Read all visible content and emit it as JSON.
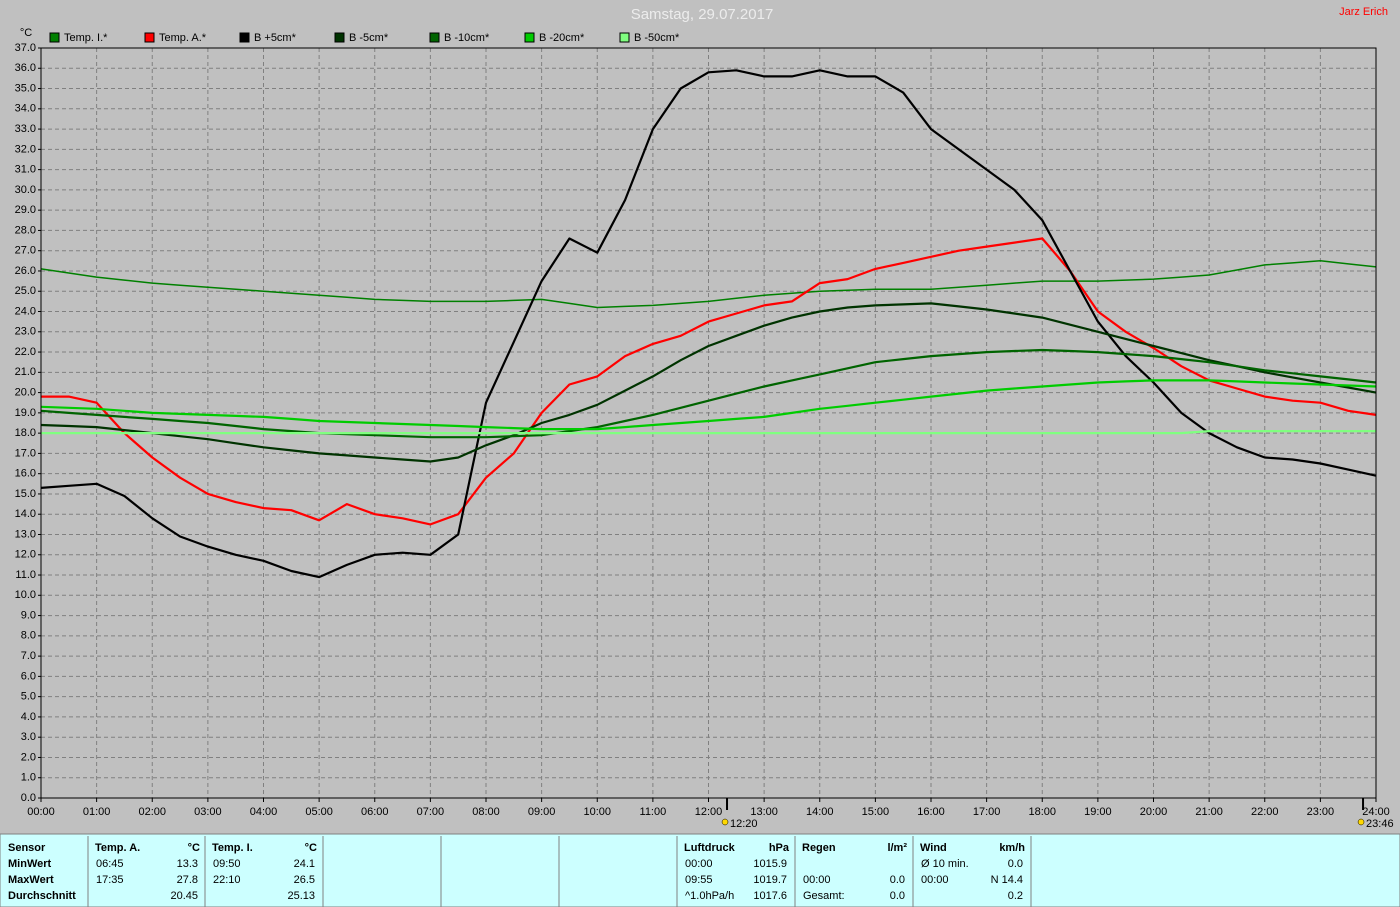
{
  "chart_data": {
    "type": "line",
    "title": "Samstag, 29.07.2017",
    "author": "Jarz Erich",
    "y_unit": "°C",
    "grid": true,
    "xlim": [
      0,
      24
    ],
    "ylim": [
      0,
      37
    ],
    "x": [
      0,
      0.5,
      1,
      1.5,
      2,
      2.5,
      3,
      3.5,
      4,
      4.5,
      5,
      5.5,
      6,
      6.5,
      7,
      7.5,
      8,
      8.5,
      9,
      9.5,
      10,
      10.5,
      11,
      11.5,
      12,
      12.5,
      13,
      13.5,
      14,
      14.5,
      15,
      15.5,
      16,
      16.5,
      17,
      17.5,
      18,
      18.5,
      19,
      19.5,
      20,
      20.5,
      21,
      21.5,
      22,
      22.5,
      23,
      23.5,
      24
    ],
    "xticks": [
      {
        "value": 0,
        "label": "00:00"
      },
      {
        "value": 1,
        "label": "01:00"
      },
      {
        "value": 2,
        "label": "02:00"
      },
      {
        "value": 3,
        "label": "03:00"
      },
      {
        "value": 4,
        "label": "04:00"
      },
      {
        "value": 5,
        "label": "05:00"
      },
      {
        "value": 6,
        "label": "06:00"
      },
      {
        "value": 7,
        "label": "07:00"
      },
      {
        "value": 8,
        "label": "08:00"
      },
      {
        "value": 9,
        "label": "09:00"
      },
      {
        "value": 10,
        "label": "10:00"
      },
      {
        "value": 11,
        "label": "11:00"
      },
      {
        "value": 12,
        "label": "12:00"
      },
      {
        "value": 13,
        "label": "13:00"
      },
      {
        "value": 14,
        "label": "14:00"
      },
      {
        "value": 15,
        "label": "15:00"
      },
      {
        "value": 16,
        "label": "16:00"
      },
      {
        "value": 17,
        "label": "17:00"
      },
      {
        "value": 18,
        "label": "18:00"
      },
      {
        "value": 19,
        "label": "19:00"
      },
      {
        "value": 20,
        "label": "20:00"
      },
      {
        "value": 21,
        "label": "21:00"
      },
      {
        "value": 22,
        "label": "22:00"
      },
      {
        "value": 23,
        "label": "23:00"
      },
      {
        "value": 24,
        "label": "24:00"
      }
    ],
    "yticks": [
      {
        "value": 0,
        "label": "0.0"
      },
      {
        "value": 1,
        "label": "1.0"
      },
      {
        "value": 2,
        "label": "2.0"
      },
      {
        "value": 3,
        "label": "3.0"
      },
      {
        "value": 4,
        "label": "4.0"
      },
      {
        "value": 5,
        "label": "5.0"
      },
      {
        "value": 6,
        "label": "6.0"
      },
      {
        "value": 7,
        "label": "7.0"
      },
      {
        "value": 8,
        "label": "8.0"
      },
      {
        "value": 9,
        "label": "9.0"
      },
      {
        "value": 10,
        "label": "10.0"
      },
      {
        "value": 11,
        "label": "11.0"
      },
      {
        "value": 12,
        "label": "12.0"
      },
      {
        "value": 13,
        "label": "13.0"
      },
      {
        "value": 14,
        "label": "14.0"
      },
      {
        "value": 15,
        "label": "15.0"
      },
      {
        "value": 16,
        "label": "16.0"
      },
      {
        "value": 17,
        "label": "17.0"
      },
      {
        "value": 18,
        "label": "18.0"
      },
      {
        "value": 19,
        "label": "19.0"
      },
      {
        "value": 20,
        "label": "20.0"
      },
      {
        "value": 21,
        "label": "21.0"
      },
      {
        "value": 22,
        "label": "22.0"
      },
      {
        "value": 23,
        "label": "23.0"
      },
      {
        "value": 24,
        "label": "24.0"
      },
      {
        "value": 25,
        "label": "25.0"
      },
      {
        "value": 26,
        "label": "26.0"
      },
      {
        "value": 27,
        "label": "27.0"
      },
      {
        "value": 28,
        "label": "28.0"
      },
      {
        "value": 29,
        "label": "29.0"
      },
      {
        "value": 30,
        "label": "30.0"
      },
      {
        "value": 31,
        "label": "31.0"
      },
      {
        "value": 32,
        "label": "32.0"
      },
      {
        "value": 33,
        "label": "33.0"
      },
      {
        "value": 34,
        "label": "34.0"
      },
      {
        "value": 35,
        "label": "35.0"
      },
      {
        "value": 36,
        "label": "36.0"
      },
      {
        "value": 37,
        "label": "37.0"
      }
    ],
    "series": [
      {
        "name": "Temp. I.*",
        "color": "#008000",
        "values": [
          26.1,
          25.9,
          25.7,
          25.55,
          25.4,
          25.3,
          25.2,
          25.1,
          25.0,
          24.9,
          24.8,
          24.7,
          24.6,
          24.55,
          24.5,
          24.5,
          24.5,
          24.55,
          24.6,
          24.4,
          24.2,
          24.25,
          24.3,
          24.4,
          24.5,
          24.65,
          24.8,
          24.9,
          25.0,
          25.05,
          25.1,
          25.1,
          25.1,
          25.2,
          25.3,
          25.4,
          25.5,
          25.5,
          25.5,
          25.55,
          25.6,
          25.7,
          25.8,
          26.05,
          26.3,
          26.4,
          26.5,
          26.35,
          26.2
        ]
      },
      {
        "name": "Temp. A.*",
        "color": "#ff0000",
        "values": [
          19.8,
          19.8,
          19.5,
          18.0,
          16.8,
          15.8,
          15.0,
          14.6,
          14.3,
          14.2,
          13.7,
          14.5,
          14.0,
          13.8,
          13.5,
          14.0,
          15.8,
          17.0,
          19.0,
          20.4,
          20.8,
          21.8,
          22.4,
          22.8,
          23.5,
          23.9,
          24.3,
          24.5,
          25.4,
          25.6,
          26.1,
          26.4,
          26.7,
          27.0,
          27.2,
          27.4,
          27.6,
          26.0,
          24.0,
          23.0,
          22.2,
          21.3,
          20.6,
          20.2,
          19.8,
          19.6,
          19.5,
          19.1,
          18.9
        ]
      },
      {
        "name": "B +5cm*",
        "color": "#000000",
        "values": [
          15.3,
          15.4,
          15.5,
          14.9,
          13.8,
          12.9,
          12.4,
          12.0,
          11.7,
          11.2,
          10.9,
          11.5,
          12.0,
          12.1,
          12.0,
          13.0,
          19.5,
          22.5,
          25.5,
          27.6,
          26.9,
          29.5,
          33.0,
          35.0,
          35.8,
          35.9,
          35.6,
          35.6,
          35.9,
          35.6,
          35.6,
          34.8,
          33.0,
          32.0,
          31.0,
          30.0,
          28.5,
          26.0,
          23.5,
          21.8,
          20.5,
          19.0,
          18.0,
          17.3,
          16.8,
          16.7,
          16.5,
          16.2,
          15.9
        ]
      },
      {
        "name": "B -5cm*",
        "color": "#003300",
        "values": [
          18.4,
          18.35,
          18.3,
          18.15,
          18.0,
          17.85,
          17.7,
          17.5,
          17.3,
          17.15,
          17.0,
          16.9,
          16.8,
          16.7,
          16.6,
          16.8,
          17.4,
          17.9,
          18.5,
          18.9,
          19.4,
          20.1,
          20.8,
          21.6,
          22.3,
          22.8,
          23.3,
          23.7,
          24.0,
          24.2,
          24.3,
          24.35,
          24.4,
          24.25,
          24.1,
          23.9,
          23.7,
          23.35,
          23.0,
          22.65,
          22.3,
          21.95,
          21.6,
          21.3,
          21.0,
          20.75,
          20.5,
          20.25,
          20.0
        ]
      },
      {
        "name": "B -10cm*",
        "color": "#006400",
        "values": [
          19.1,
          19.0,
          18.9,
          18.8,
          18.7,
          18.6,
          18.5,
          18.35,
          18.2,
          18.1,
          18.0,
          17.95,
          17.9,
          17.85,
          17.8,
          17.8,
          17.8,
          17.85,
          17.9,
          18.1,
          18.3,
          18.6,
          18.9,
          19.25,
          19.6,
          19.95,
          20.3,
          20.6,
          20.9,
          21.2,
          21.5,
          21.65,
          21.8,
          21.9,
          22.0,
          22.05,
          22.1,
          22.05,
          22.0,
          21.9,
          21.8,
          21.65,
          21.5,
          21.3,
          21.1,
          20.95,
          20.8,
          20.65,
          20.5
        ]
      },
      {
        "name": "B -20cm*",
        "color": "#00cc00",
        "values": [
          19.3,
          19.25,
          19.2,
          19.1,
          19.0,
          18.95,
          18.9,
          18.85,
          18.8,
          18.7,
          18.6,
          18.55,
          18.5,
          18.45,
          18.4,
          18.35,
          18.3,
          18.25,
          18.2,
          18.2,
          18.2,
          18.3,
          18.4,
          18.5,
          18.6,
          18.7,
          18.8,
          19.0,
          19.2,
          19.35,
          19.5,
          19.65,
          19.8,
          19.95,
          20.1,
          20.2,
          20.3,
          20.4,
          20.5,
          20.55,
          20.6,
          20.6,
          20.6,
          20.55,
          20.5,
          20.45,
          20.4,
          20.35,
          20.3
        ]
      },
      {
        "name": "B -50cm*",
        "color": "#80ff80",
        "values": [
          18.0,
          18.0,
          18.0,
          18.0,
          18.0,
          18.0,
          18.0,
          18.0,
          18.0,
          18.0,
          18.0,
          18.0,
          18.0,
          18.0,
          18.0,
          18.0,
          18.0,
          18.0,
          18.0,
          18.0,
          18.0,
          18.0,
          18.0,
          18.0,
          18.0,
          18.0,
          18.0,
          18.0,
          18.0,
          18.0,
          18.0,
          18.0,
          18.0,
          18.0,
          18.0,
          18.0,
          18.0,
          18.0,
          18.0,
          18.0,
          18.0,
          18.0,
          18.1,
          18.1,
          18.1,
          18.1,
          18.1,
          18.1,
          18.1
        ]
      }
    ],
    "annotations": [
      {
        "text": "12:20",
        "x": 12.333
      },
      {
        "text": "23:46",
        "x": 23.767
      }
    ]
  },
  "summary": {
    "row_labels": [
      "Sensor",
      "MinWert",
      "MaxWert",
      "Durchschnitt"
    ],
    "sections": [
      {
        "label": "Temp. A.",
        "unit": "°C",
        "rows": [
          {
            "time": "06:45",
            "value": "13.3"
          },
          {
            "time": "17:35",
            "value": "27.8"
          },
          {
            "value": "20.45"
          }
        ]
      },
      {
        "label": "Temp. I.",
        "unit": "°C",
        "rows": [
          {
            "time": "09:50",
            "value": "24.1"
          },
          {
            "time": "22:10",
            "value": "26.5"
          },
          {
            "value": "25.13"
          }
        ]
      },
      {
        "label": "Luftdruck",
        "unit": "hPa",
        "rows": [
          {
            "time": "00:00",
            "value": "1015.9"
          },
          {
            "time": "09:55",
            "value": "1019.7"
          },
          {
            "time": "^1.0hPa/h",
            "value": "1017.6"
          }
        ]
      },
      {
        "label": "Regen",
        "unit": "l/m²",
        "rows": [
          null,
          {
            "time": "00:00",
            "value": "0.0"
          },
          {
            "time": "Gesamt:",
            "value": "0.0"
          }
        ]
      },
      {
        "label": "Wind",
        "unit": "km/h",
        "rows": [
          {
            "time": "Ø 10 min.",
            "value": "0.0"
          },
          {
            "time": "00:00",
            "value": "N 14.4"
          },
          {
            "value": "0.2"
          }
        ]
      }
    ]
  }
}
